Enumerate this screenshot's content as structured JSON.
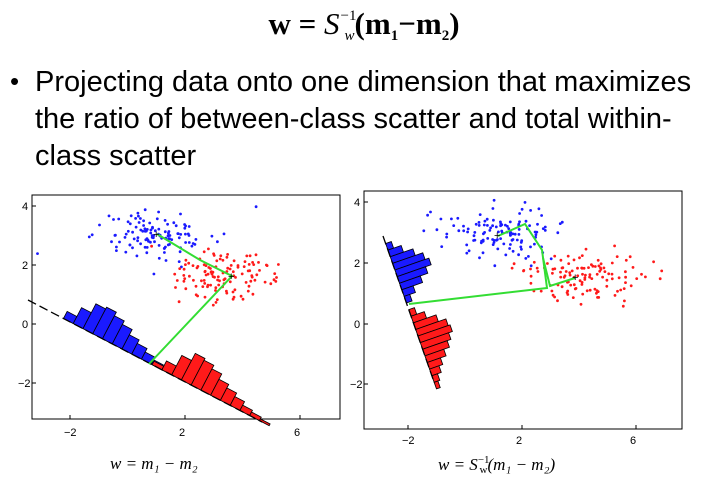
{
  "formula": {
    "lhs": "w",
    "eq": "=",
    "s": "S",
    "sub": "w",
    "sup": "−1",
    "open": "(",
    "m1": "m",
    "m1_sub": "1",
    "minus": "−",
    "m2": "m",
    "m2_sub": "2",
    "close": ")"
  },
  "bullet": {
    "marker": "•",
    "text": "Projecting data onto one dimension that maximizes the ratio of between-class scatter and total within-class scatter"
  },
  "plots": [
    {
      "caption": "w = m₁ − m₂",
      "x_ticks": [
        "−2",
        "2",
        "6"
      ],
      "y_ticks": [
        "4",
        "2",
        "0",
        "−2"
      ]
    },
    {
      "caption_main": "w = S",
      "caption_sub": "w",
      "caption_sup": "−1",
      "caption_rest": "(m₁ − m₂)",
      "x_ticks": [
        "−2",
        "2",
        "6"
      ],
      "y_ticks": [
        "4",
        "2",
        "0",
        "−2"
      ]
    }
  ],
  "colors": {
    "class1": "#1a1aff",
    "class2": "#ff1a1a",
    "connector": "#33dd33",
    "axis": "#000000"
  }
}
